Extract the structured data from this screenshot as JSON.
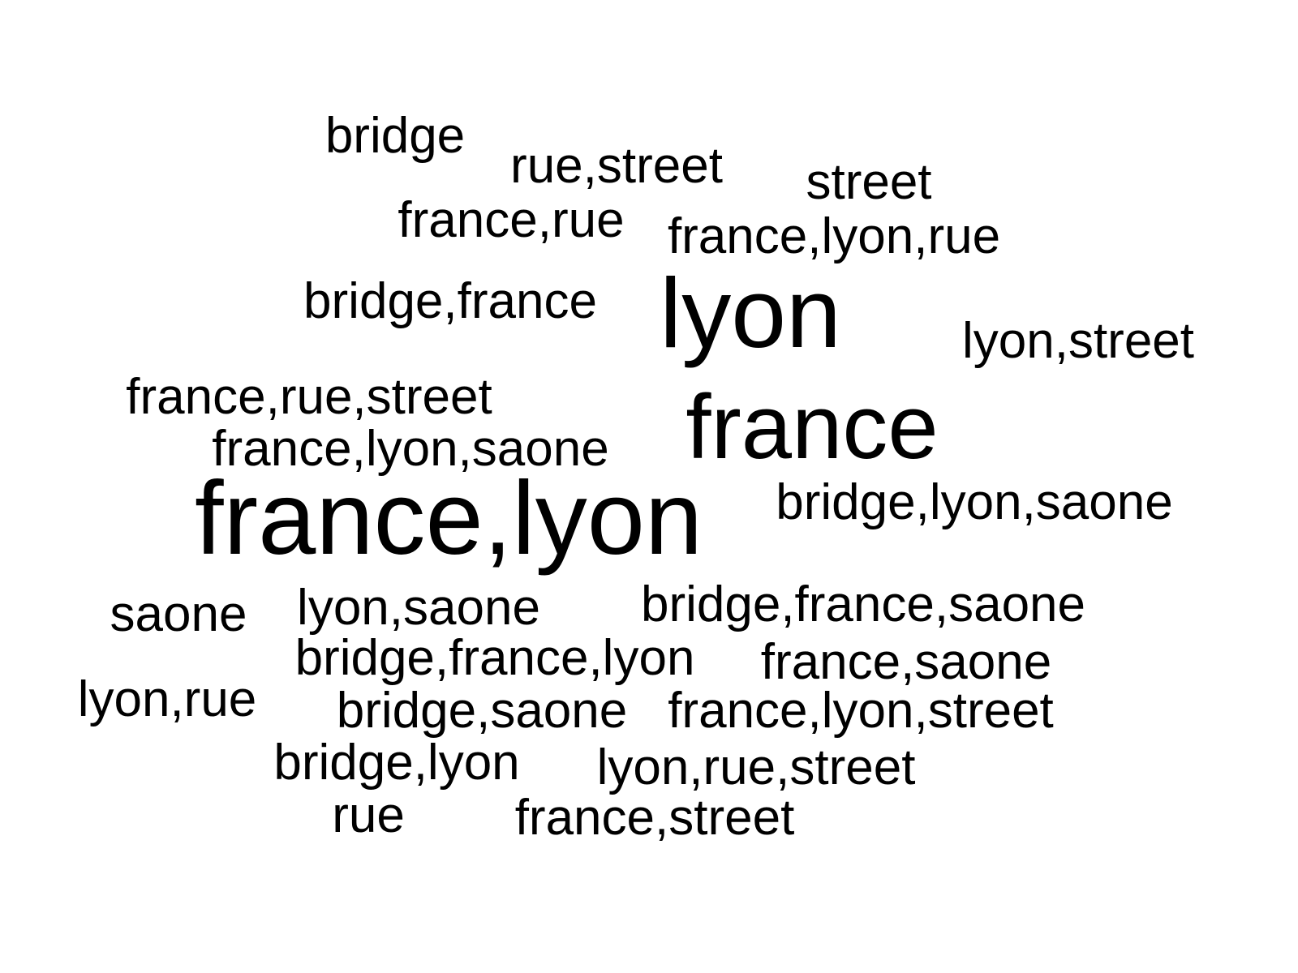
{
  "words": [
    "bridge",
    "rue,street",
    "street",
    "france,rue",
    "france,lyon,rue",
    "bridge,france",
    "lyon",
    "lyon,street",
    "france,rue,street",
    "france",
    "france,lyon,saone",
    "bridge,lyon,saone",
    "france,lyon",
    "bridge,france,saone",
    "saone",
    "lyon,saone",
    "bridge,france,lyon",
    "france,saone",
    "lyon,rue",
    "bridge,saone",
    "france,lyon,street",
    "bridge,lyon",
    "lyon,rue,street",
    "rue",
    "france,street"
  ],
  "colors": {
    "text": "#000000",
    "background": "#ffffff"
  }
}
